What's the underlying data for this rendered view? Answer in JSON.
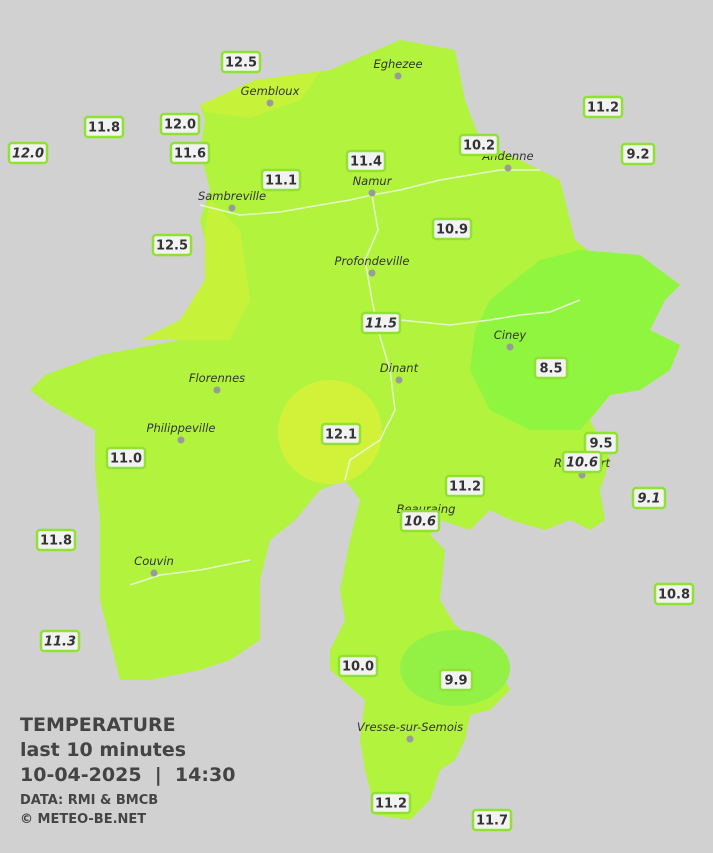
{
  "cities": [
    "Eghezee",
    "Gembloux",
    "Andenne",
    "Namur",
    "Sambreville",
    "Profondeville",
    "Ciney",
    "Dinant",
    "Florennes",
    "Philippeville",
    "Rochefort",
    "Beauraing",
    "Couvin",
    "Vresse-sur-Semois"
  ],
  "readings": [
    {
      "text": "12.5",
      "italic": false
    },
    {
      "text": "11.8",
      "italic": false
    },
    {
      "text": "12.0",
      "italic": false
    },
    {
      "text": "12.0",
      "italic": true
    },
    {
      "text": "11.6",
      "italic": false
    },
    {
      "text": "11.1",
      "italic": false
    },
    {
      "text": "11.4",
      "italic": false
    },
    {
      "text": "10.2",
      "italic": false
    },
    {
      "text": "11.2",
      "italic": false
    },
    {
      "text": "9.2",
      "italic": false
    },
    {
      "text": "12.5",
      "italic": false
    },
    {
      "text": "10.9",
      "italic": false
    },
    {
      "text": "11.5",
      "italic": true
    },
    {
      "text": "8.5",
      "italic": false
    },
    {
      "text": "12.1",
      "italic": false
    },
    {
      "text": "9.5",
      "italic": false
    },
    {
      "text": "10.6",
      "italic": true
    },
    {
      "text": "11.0",
      "italic": false
    },
    {
      "text": "11.2",
      "italic": false
    },
    {
      "text": "9.1",
      "italic": true
    },
    {
      "text": "10.6",
      "italic": true
    },
    {
      "text": "11.8",
      "italic": false
    },
    {
      "text": "10.8",
      "italic": false
    },
    {
      "text": "11.3",
      "italic": true
    },
    {
      "text": "10.0",
      "italic": false
    },
    {
      "text": "9.9",
      "italic": false
    },
    {
      "text": "11.2",
      "italic": false
    },
    {
      "text": "11.7",
      "italic": false
    }
  ],
  "caption": {
    "title": "TEMPERATURE",
    "period": "last 10 minutes",
    "datetime": "10-04-2025  |  14:30",
    "source": "DATA: RMI & BMCB",
    "credit": "© METEO-BE.NET"
  }
}
